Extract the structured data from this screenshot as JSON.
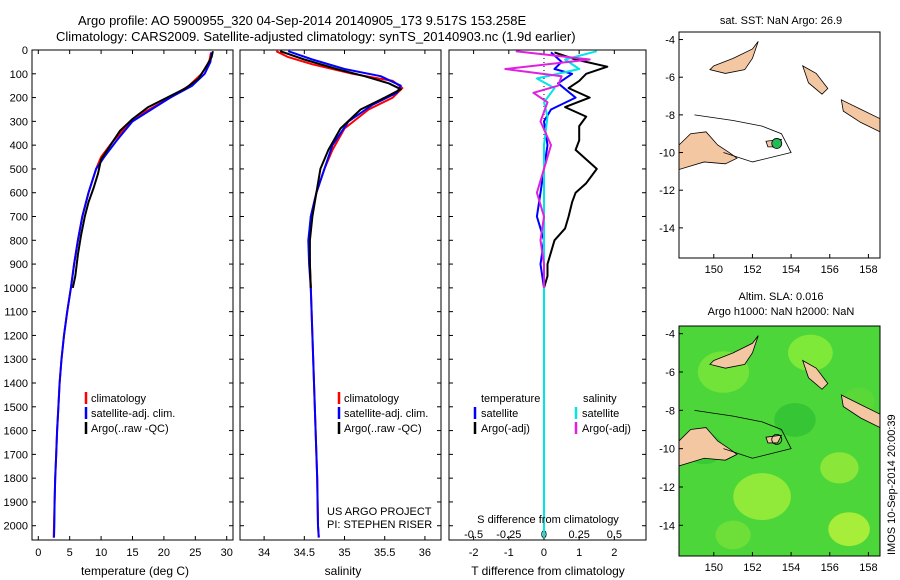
{
  "header": {
    "line1": "Argo profile: AO 5900955_320 04-Sep-2014 20140905_173 9.517S 153.258E",
    "line2": "Climatology: CARS2009. Satellite-adjusted climatology: synTS_20140903.nc (1.9d earlier)"
  },
  "credit": {
    "line1": "US ARGO PROJECT",
    "line2": "PI: STEPHEN RISER"
  },
  "imos_stamp": "IMOS 10-Sep-2014 20:00:39",
  "colors": {
    "climatology": "#ff0000",
    "satellite": "#0000ff",
    "argo": "#000000",
    "sal_satellite": "#00e5e5",
    "sal_argo": "#e020e0",
    "land": "#f4c7a3",
    "sla_field": "#4dd63a",
    "float_marker": "#22bb55"
  },
  "chart_data": [
    {
      "id": "temperature",
      "type": "line",
      "xlabel": "temperature (deg C)",
      "xlim": [
        -1,
        31
      ],
      "xticks": [
        0,
        5,
        10,
        15,
        20,
        25,
        30
      ],
      "ylim": [
        0,
        2060
      ],
      "yticks": [
        0,
        100,
        200,
        300,
        400,
        500,
        600,
        700,
        800,
        900,
        1000,
        1100,
        1200,
        1300,
        1400,
        1500,
        1600,
        1700,
        1800,
        1900,
        2000
      ],
      "legend": [
        "climatology",
        "satellite-adj. clim.",
        "Argo(..raw -QC)"
      ],
      "series": [
        {
          "name": "climatology",
          "color": "#ff0000",
          "points": [
            [
              27.5,
              10
            ],
            [
              27.2,
              50
            ],
            [
              26.0,
              100
            ],
            [
              24.0,
              150
            ],
            [
              21.0,
              200
            ],
            [
              17.0,
              260
            ],
            [
              14.5,
              310
            ],
            [
              12.0,
              380
            ],
            [
              10.0,
              450
            ],
            [
              9.2,
              500
            ],
            [
              8.0,
              600
            ],
            [
              7.0,
              700
            ],
            [
              6.3,
              800
            ],
            [
              5.7,
              900
            ],
            [
              5.2,
              1000
            ],
            [
              4.6,
              1100
            ],
            [
              4.1,
              1200
            ],
            [
              3.7,
              1300
            ],
            [
              3.4,
              1400
            ],
            [
              3.2,
              1500
            ],
            [
              3.0,
              1600
            ],
            [
              2.85,
              1700
            ],
            [
              2.7,
              1800
            ],
            [
              2.6,
              1900
            ],
            [
              2.5,
              2000
            ],
            [
              2.45,
              2050
            ]
          ]
        },
        {
          "name": "satellite-adj. clim.",
          "color": "#0000ff",
          "points": [
            [
              27.6,
              10
            ],
            [
              27.4,
              50
            ],
            [
              26.5,
              100
            ],
            [
              24.5,
              150
            ],
            [
              21.0,
              200
            ],
            [
              18.0,
              250
            ],
            [
              15.0,
              300
            ],
            [
              12.5,
              380
            ],
            [
              10.5,
              450
            ],
            [
              9.2,
              500
            ],
            [
              8.0,
              600
            ],
            [
              7.0,
              700
            ],
            [
              6.3,
              800
            ],
            [
              5.7,
              900
            ],
            [
              5.2,
              1000
            ],
            [
              4.6,
              1100
            ],
            [
              4.1,
              1200
            ],
            [
              3.7,
              1300
            ],
            [
              3.4,
              1400
            ],
            [
              3.2,
              1500
            ],
            [
              3.0,
              1600
            ],
            [
              2.85,
              1700
            ],
            [
              2.7,
              1800
            ],
            [
              2.6,
              1900
            ],
            [
              2.55,
              2000
            ],
            [
              2.5,
              2050
            ]
          ]
        },
        {
          "name": "Argo(..raw -QC)",
          "color": "#000000",
          "points": [
            [
              27.8,
              5
            ],
            [
              27.6,
              30
            ],
            [
              26.5,
              80
            ],
            [
              25.5,
              120
            ],
            [
              23.5,
              160
            ],
            [
              20.5,
              200
            ],
            [
              17.5,
              240
            ],
            [
              15.0,
              290
            ],
            [
              13.0,
              340
            ],
            [
              11.5,
              400
            ],
            [
              10.0,
              460
            ],
            [
              9.5,
              520
            ],
            [
              8.8,
              580
            ],
            [
              8.0,
              640
            ],
            [
              7.4,
              700
            ],
            [
              6.8,
              780
            ],
            [
              6.3,
              860
            ],
            [
              5.9,
              950
            ],
            [
              5.5,
              1000
            ]
          ]
        }
      ]
    },
    {
      "id": "salinity",
      "type": "line",
      "xlabel": "salinity",
      "xlim": [
        33.7,
        36.2
      ],
      "xticks": [
        34,
        34.5,
        35,
        35.5,
        36
      ],
      "ylim": [
        0,
        2060
      ],
      "legend": [
        "climatology",
        "satellite-adj. clim.",
        "Argo(..raw -QC)"
      ],
      "series": [
        {
          "name": "climatology",
          "color": "#ff0000",
          "points": [
            [
              34.15,
              5
            ],
            [
              34.3,
              30
            ],
            [
              34.6,
              60
            ],
            [
              35.1,
              100
            ],
            [
              35.6,
              130
            ],
            [
              35.72,
              160
            ],
            [
              35.6,
              200
            ],
            [
              35.3,
              250
            ],
            [
              35.0,
              330
            ],
            [
              34.85,
              420
            ],
            [
              34.75,
              500
            ],
            [
              34.65,
              600
            ],
            [
              34.58,
              700
            ],
            [
              34.56,
              800
            ],
            [
              34.57,
              900
            ],
            [
              34.58,
              1000
            ],
            [
              34.6,
              1200
            ],
            [
              34.62,
              1400
            ],
            [
              34.64,
              1600
            ],
            [
              34.66,
              1800
            ],
            [
              34.67,
              2000
            ],
            [
              34.68,
              2050
            ]
          ]
        },
        {
          "name": "satellite-adj. clim.",
          "color": "#0000ff",
          "points": [
            [
              34.3,
              5
            ],
            [
              34.6,
              40
            ],
            [
              35.0,
              80
            ],
            [
              35.45,
              110
            ],
            [
              35.7,
              150
            ],
            [
              35.65,
              180
            ],
            [
              35.35,
              230
            ],
            [
              35.05,
              300
            ],
            [
              34.85,
              400
            ],
            [
              34.75,
              500
            ],
            [
              34.65,
              600
            ],
            [
              34.58,
              700
            ],
            [
              34.55,
              800
            ],
            [
              34.56,
              900
            ],
            [
              34.58,
              1000
            ],
            [
              34.6,
              1200
            ],
            [
              34.62,
              1400
            ],
            [
              34.64,
              1600
            ],
            [
              34.66,
              1800
            ],
            [
              34.67,
              2000
            ],
            [
              34.68,
              2050
            ]
          ]
        },
        {
          "name": "Argo(..raw -QC)",
          "color": "#000000",
          "points": [
            [
              34.2,
              5
            ],
            [
              34.5,
              40
            ],
            [
              34.9,
              80
            ],
            [
              35.25,
              110
            ],
            [
              35.55,
              140
            ],
            [
              35.7,
              165
            ],
            [
              35.5,
              200
            ],
            [
              35.2,
              250
            ],
            [
              34.95,
              330
            ],
            [
              34.8,
              420
            ],
            [
              34.7,
              500
            ],
            [
              34.65,
              600
            ],
            [
              34.6,
              700
            ],
            [
              34.57,
              800
            ],
            [
              34.57,
              900
            ],
            [
              34.58,
              1000
            ]
          ]
        }
      ]
    },
    {
      "id": "difference",
      "type": "line",
      "xlabel": "T difference from climatology",
      "xlabel_top": "S difference from climatology",
      "xlim": [
        -2.7,
        2.9
      ],
      "xticks": [
        -2,
        -1,
        0,
        1,
        2
      ],
      "s_ticks": [
        [
          -0.5,
          "-0.5"
        ],
        [
          -0.25,
          "-0.25"
        ],
        [
          0,
          "0"
        ],
        [
          0.25,
          "0.25"
        ],
        [
          0.5,
          "0.5"
        ]
      ],
      "s_scale": 4,
      "ylim": [
        0,
        2060
      ],
      "legend_t_title": "temperature",
      "legend_s_title": "salinity",
      "legend_t": [
        "satellite",
        "Argo(-adj)"
      ],
      "legend_s": [
        "satellite",
        "Argo(-adj)"
      ],
      "series": [
        {
          "name": "T satellite",
          "color": "#0000ff",
          "points": [
            [
              0.2,
              10
            ],
            [
              0.5,
              50
            ],
            [
              0.3,
              80
            ],
            [
              0.8,
              100
            ],
            [
              0.4,
              140
            ],
            [
              0.9,
              200
            ],
            [
              0.2,
              250
            ],
            [
              0.0,
              300
            ],
            [
              0.1,
              400
            ],
            [
              0.0,
              500
            ],
            [
              -0.1,
              600
            ],
            [
              -0.2,
              700
            ],
            [
              -0.1,
              750
            ],
            [
              0.0,
              800
            ],
            [
              -0.1,
              900
            ],
            [
              0.0,
              1000
            ],
            [
              0.0,
              1200
            ],
            [
              0.0,
              1500
            ],
            [
              0.0,
              1800
            ],
            [
              0.0,
              2050
            ]
          ]
        },
        {
          "name": "T Argo(-adj)",
          "color": "#000000",
          "points": [
            [
              0.3,
              10
            ],
            [
              0.9,
              40
            ],
            [
              1.8,
              70
            ],
            [
              1.2,
              100
            ],
            [
              1.0,
              130
            ],
            [
              0.7,
              160
            ],
            [
              1.3,
              200
            ],
            [
              0.6,
              240
            ],
            [
              1.2,
              280
            ],
            [
              1.0,
              320
            ],
            [
              1.0,
              380
            ],
            [
              0.9,
              420
            ],
            [
              1.2,
              460
            ],
            [
              1.5,
              500
            ],
            [
              1.2,
              560
            ],
            [
              0.9,
              600
            ],
            [
              0.8,
              640
            ],
            [
              0.7,
              700
            ],
            [
              0.6,
              750
            ],
            [
              0.3,
              800
            ],
            [
              0.2,
              850
            ],
            [
              0.1,
              900
            ],
            [
              0.1,
              950
            ],
            [
              0.0,
              1000
            ]
          ]
        },
        {
          "name": "S satellite",
          "color": "#00e5e5",
          "points": [
            [
              1.5,
              5
            ],
            [
              0.6,
              40
            ],
            [
              1.0,
              80
            ],
            [
              -0.2,
              120
            ],
            [
              0.3,
              160
            ],
            [
              0.0,
              220
            ],
            [
              0.1,
              280
            ],
            [
              0.0,
              400
            ],
            [
              0.0,
              600
            ],
            [
              0.0,
              800
            ],
            [
              0.0,
              1000
            ],
            [
              0.0,
              1300
            ],
            [
              0.0,
              1600
            ],
            [
              0.0,
              1900
            ],
            [
              0.0,
              2050
            ]
          ]
        },
        {
          "name": "S Argo(-adj)",
          "color": "#e020e0",
          "points": [
            [
              -0.8,
              5
            ],
            [
              1.3,
              40
            ],
            [
              -1.1,
              80
            ],
            [
              0.5,
              110
            ],
            [
              0.4,
              150
            ],
            [
              -0.3,
              180
            ],
            [
              0.1,
              220
            ],
            [
              -0.1,
              300
            ],
            [
              0.2,
              400
            ],
            [
              0.0,
              500
            ],
            [
              -0.2,
              600
            ],
            [
              0.0,
              700
            ],
            [
              -0.1,
              800
            ],
            [
              0.0,
              900
            ],
            [
              0.0,
              1000
            ]
          ]
        }
      ]
    },
    {
      "id": "sst-map",
      "type": "map",
      "title": "sat. SST: NaN Argo: 26.9",
      "xlim": [
        148.2,
        158.6
      ],
      "ylim": [
        -15.6,
        -3.6
      ],
      "xticks": [
        150,
        152,
        154,
        156,
        158
      ],
      "yticks": [
        -4,
        -6,
        -8,
        -10,
        -12,
        -14
      ],
      "float_position": [
        153.258,
        -9.517
      ]
    },
    {
      "id": "sla-map",
      "type": "map",
      "title": "Altim. SLA: 0.016",
      "subtitle": "Argo h1000: NaN h2000: NaN",
      "xlim": [
        148.2,
        158.6
      ],
      "ylim": [
        -15.6,
        -3.6
      ],
      "xticks": [
        150,
        152,
        154,
        156,
        158
      ],
      "yticks": [
        -4,
        -6,
        -8,
        -10,
        -12,
        -14
      ],
      "float_position": [
        153.258,
        -9.517
      ]
    }
  ]
}
